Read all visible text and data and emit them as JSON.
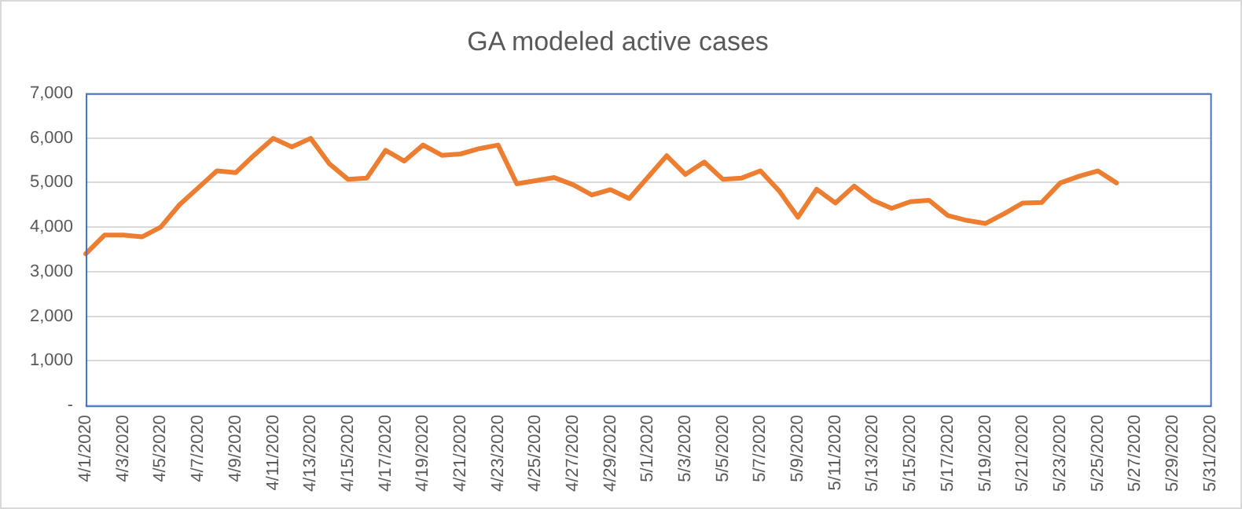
{
  "chart_data": {
    "type": "line",
    "title": "GA modeled active cases",
    "categories": [
      "4/1/2020",
      null,
      "4/3/2020",
      null,
      "4/5/2020",
      null,
      "4/7/2020",
      null,
      "4/9/2020",
      null,
      "4/11/2020",
      null,
      "4/13/2020",
      null,
      "4/15/2020",
      null,
      "4/17/2020",
      null,
      "4/19/2020",
      null,
      "4/21/2020",
      null,
      "4/23/2020",
      null,
      "4/25/2020",
      null,
      "4/27/2020",
      null,
      "4/29/2020",
      null,
      "5/1/2020",
      null,
      "5/3/2020",
      null,
      "5/5/2020",
      null,
      "5/7/2020",
      null,
      "5/9/2020",
      null,
      "5/11/2020",
      null,
      "5/13/2020",
      null,
      "5/15/2020",
      null,
      "5/17/2020",
      null,
      "5/19/2020",
      null,
      "5/21/2020",
      null,
      "5/23/2020",
      null,
      "5/25/2020",
      null,
      "5/27/2020",
      null,
      "5/29/2020",
      null,
      "5/31/2020"
    ],
    "series": [
      {
        "color": "#ed7d31",
        "values": [
          3400,
          3820,
          3820,
          3780,
          4000,
          4500,
          4880,
          5260,
          5220,
          5620,
          5990,
          5800,
          5990,
          5420,
          5070,
          5100,
          5720,
          5480,
          5840,
          5610,
          5640,
          5760,
          5840,
          4970,
          5040,
          5110,
          4950,
          4720,
          4840,
          4640,
          5120,
          5600,
          5180,
          5460,
          5070,
          5100,
          5260,
          4810,
          4220,
          4850,
          4540,
          4920,
          4600,
          4420,
          4570,
          4600,
          4260,
          4150,
          4080,
          4300,
          4540,
          4550,
          4990,
          5140,
          5260,
          4990,
          null,
          null,
          null,
          null,
          null
        ]
      }
    ],
    "ylim": [
      0,
      7000
    ],
    "yticks": [
      {
        "value": 0,
        "label": "-"
      },
      {
        "value": 1000,
        "label": "1,000"
      },
      {
        "value": 2000,
        "label": "2,000"
      },
      {
        "value": 3000,
        "label": "3,000"
      },
      {
        "value": 4000,
        "label": "4,000"
      },
      {
        "value": 5000,
        "label": "5,000"
      },
      {
        "value": 6000,
        "label": "6,000"
      },
      {
        "value": 7000,
        "label": "7,000"
      }
    ],
    "grid": "y",
    "legend": false,
    "marker": "none",
    "line_style": "solid"
  }
}
